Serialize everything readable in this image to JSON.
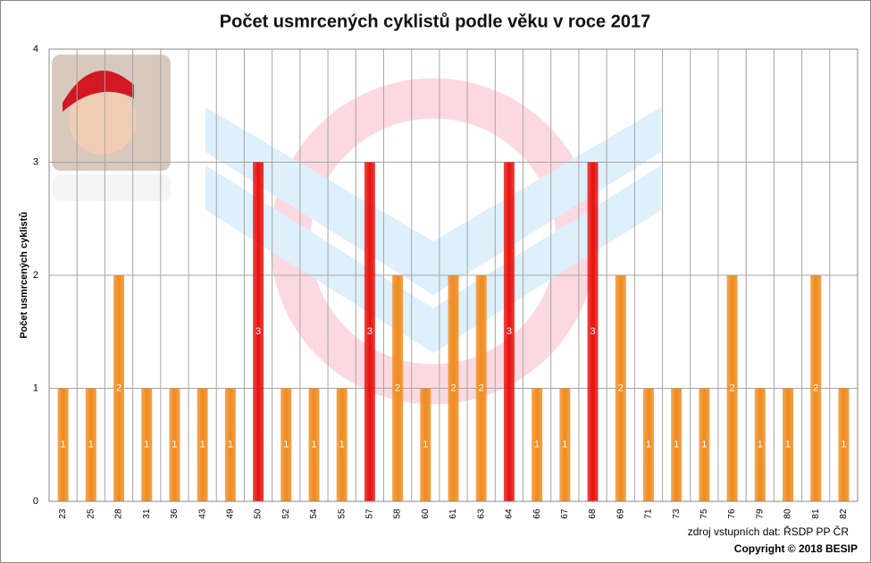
{
  "chart_data": {
    "type": "bar",
    "title": "Počet usmrcených cyklistů podle věku v roce 2017",
    "y_label": "Počet usmrcených cyklistů",
    "categories": [
      "23",
      "25",
      "28",
      "31",
      "36",
      "43",
      "49",
      "50",
      "52",
      "54",
      "55",
      "57",
      "58",
      "60",
      "61",
      "63",
      "64",
      "66",
      "67",
      "68",
      "69",
      "71",
      "73",
      "75",
      "76",
      "79",
      "80",
      "81",
      "82"
    ],
    "values": [
      1,
      1,
      2,
      1,
      1,
      1,
      1,
      3,
      1,
      1,
      1,
      3,
      2,
      1,
      2,
      2,
      3,
      1,
      1,
      3,
      2,
      1,
      1,
      1,
      2,
      1,
      1,
      2,
      1
    ],
    "colors": [
      "#f08a1c",
      "#f08a1c",
      "#f08a1c",
      "#f08a1c",
      "#f08a1c",
      "#f08a1c",
      "#f08a1c",
      "#e8100c",
      "#f08a1c",
      "#f08a1c",
      "#f08a1c",
      "#e8100c",
      "#f08a1c",
      "#f08a1c",
      "#f08a1c",
      "#f08a1c",
      "#e8100c",
      "#f08a1c",
      "#f08a1c",
      "#e8100c",
      "#f08a1c",
      "#f08a1c",
      "#f08a1c",
      "#f08a1c",
      "#f08a1c",
      "#f08a1c",
      "#f08a1c",
      "#f08a1c",
      "#f08a1c"
    ],
    "ylim": [
      0,
      4
    ],
    "yticks": [
      0,
      1,
      2,
      3,
      4
    ],
    "grid": true,
    "source": "zdroj vstupních dat: ŘSDP PP ČR",
    "copyright": "Copyright © 2018  BESIP"
  }
}
